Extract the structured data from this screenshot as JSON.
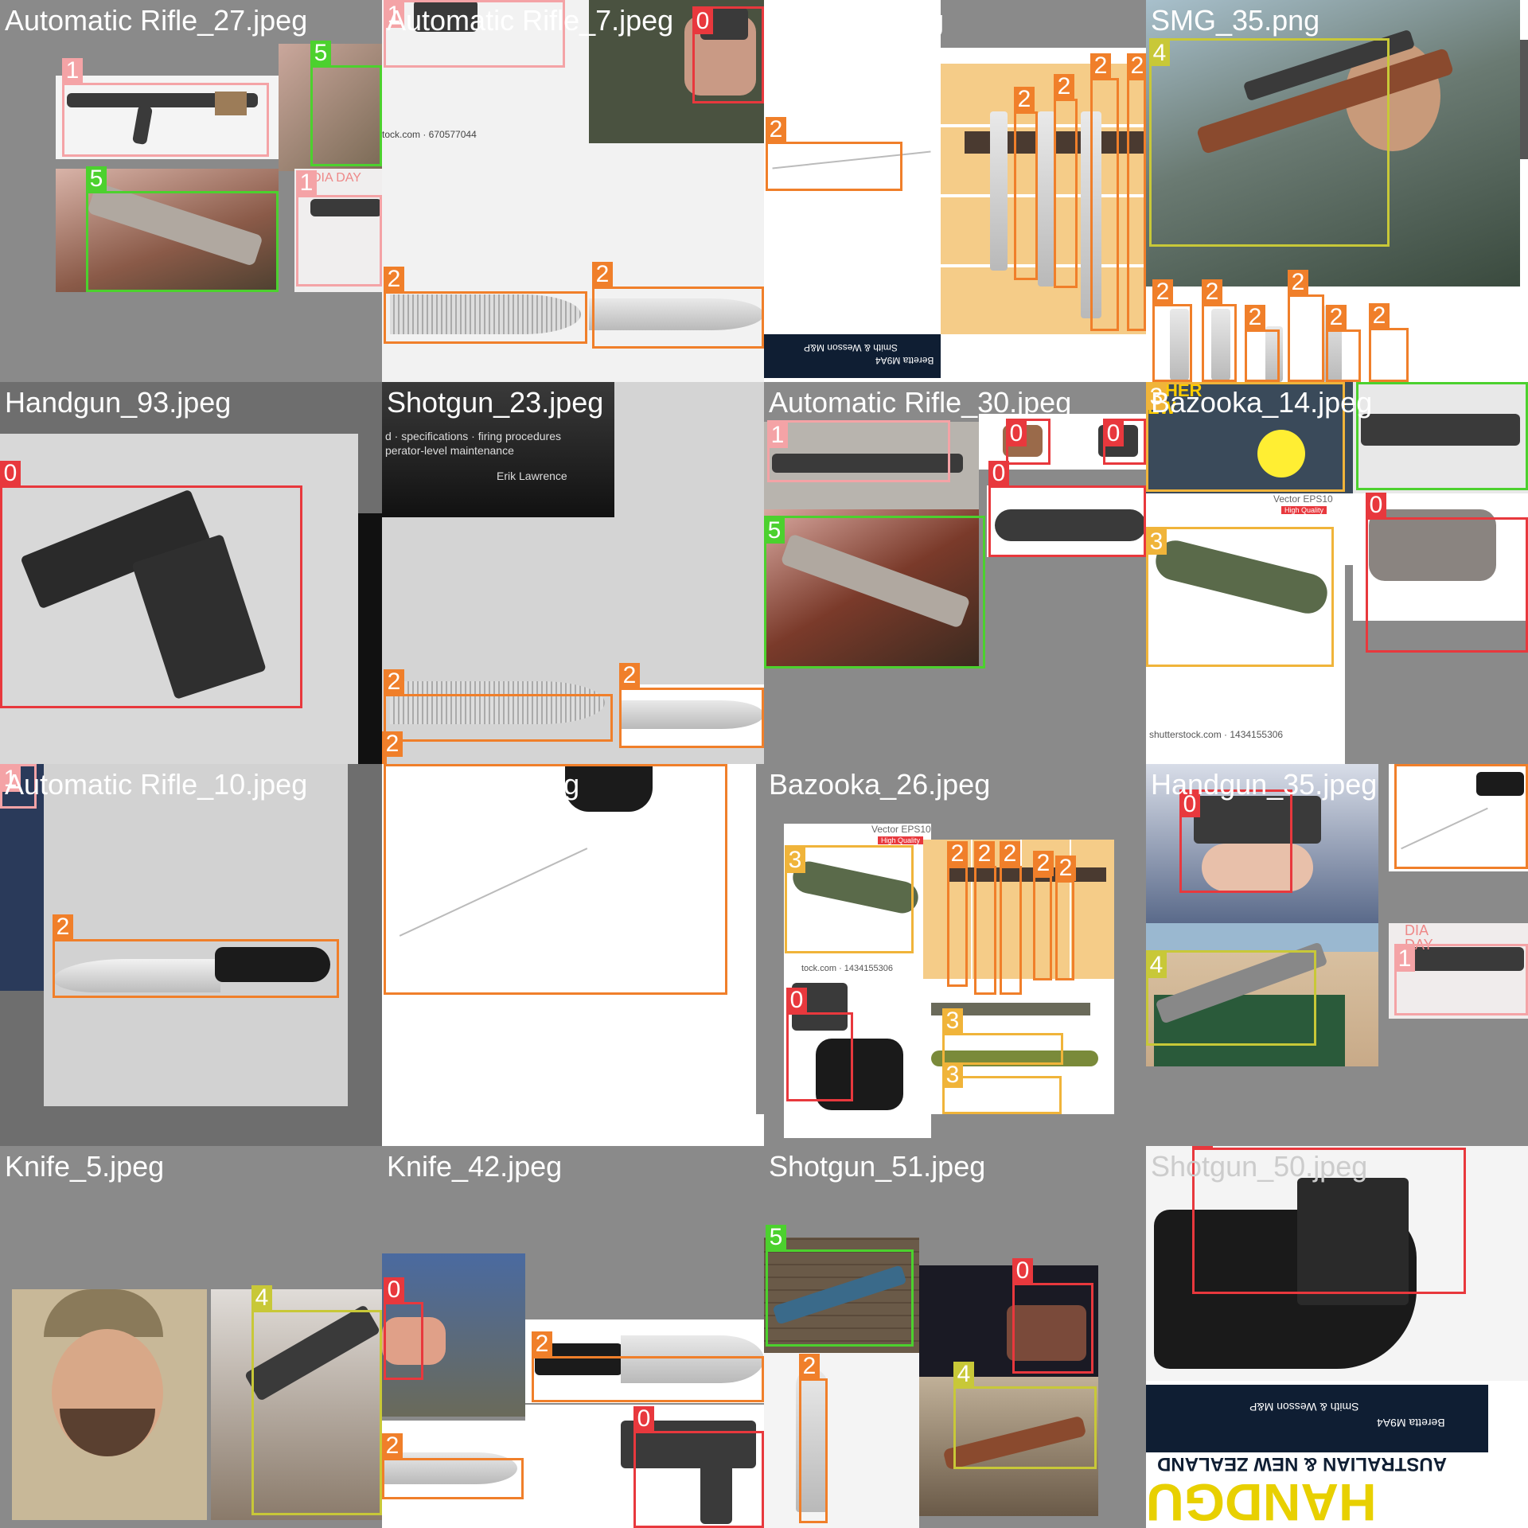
{
  "tiles": [
    {
      "label": "Automatic Rifle_27.jpeg"
    },
    {
      "label": "Automatic Rifle_7.jpeg"
    },
    {
      "label": "Knife_20.jpeg"
    },
    {
      "label": "SMG_35.png"
    },
    {
      "label": "Handgun_93.jpeg"
    },
    {
      "label": "Shotgun_23.jpeg"
    },
    {
      "label": "Automatic Rifle_30.jpeg"
    },
    {
      "label": "Bazooka_14.jpeg"
    },
    {
      "label": "Automatic Rifle_10.jpeg"
    },
    {
      "label": "Sniper_39.jpeg"
    },
    {
      "label": "Bazooka_26.jpeg"
    },
    {
      "label": "Handgun_35.jpeg"
    },
    {
      "label": "Knife_5.jpeg"
    },
    {
      "label": "Knife_42.jpeg"
    },
    {
      "label": "Shotgun_51.jpeg"
    },
    {
      "label": "Shotgun_50.jpeg"
    }
  ],
  "class_ids": [
    "0",
    "1",
    "2",
    "3",
    "4",
    "5"
  ],
  "class_colors": {
    "0": "#e8383d",
    "1": "#f4a3a6",
    "2": "#f07f2a",
    "3": "#f0b43a",
    "4": "#c8c838",
    "5": "#4cd12e"
  },
  "image_text": {
    "stock_id_1": "tock.com · 670577044",
    "book_line_1": "d · specifications · firing procedures",
    "book_line_2": "perator-level maintenance",
    "book_author": "Erik Lawrence",
    "vector_badge": "Vector EPS10",
    "quality_badge": "High Quality",
    "stock_id_2": "shutterstock.com · 1434155306",
    "stock_id_3": "tock.com · 1434155306",
    "magazine_line": "AUSTRALIAN & NEW ZEALAND",
    "magazine_title": "HANDGU",
    "ad_brand_1": "Smith & Wesson M&P",
    "ad_brand_2": "Beretta M9A4",
    "dia_day": "DIA DAY",
    "launcher_text": "ICHER EW"
  }
}
